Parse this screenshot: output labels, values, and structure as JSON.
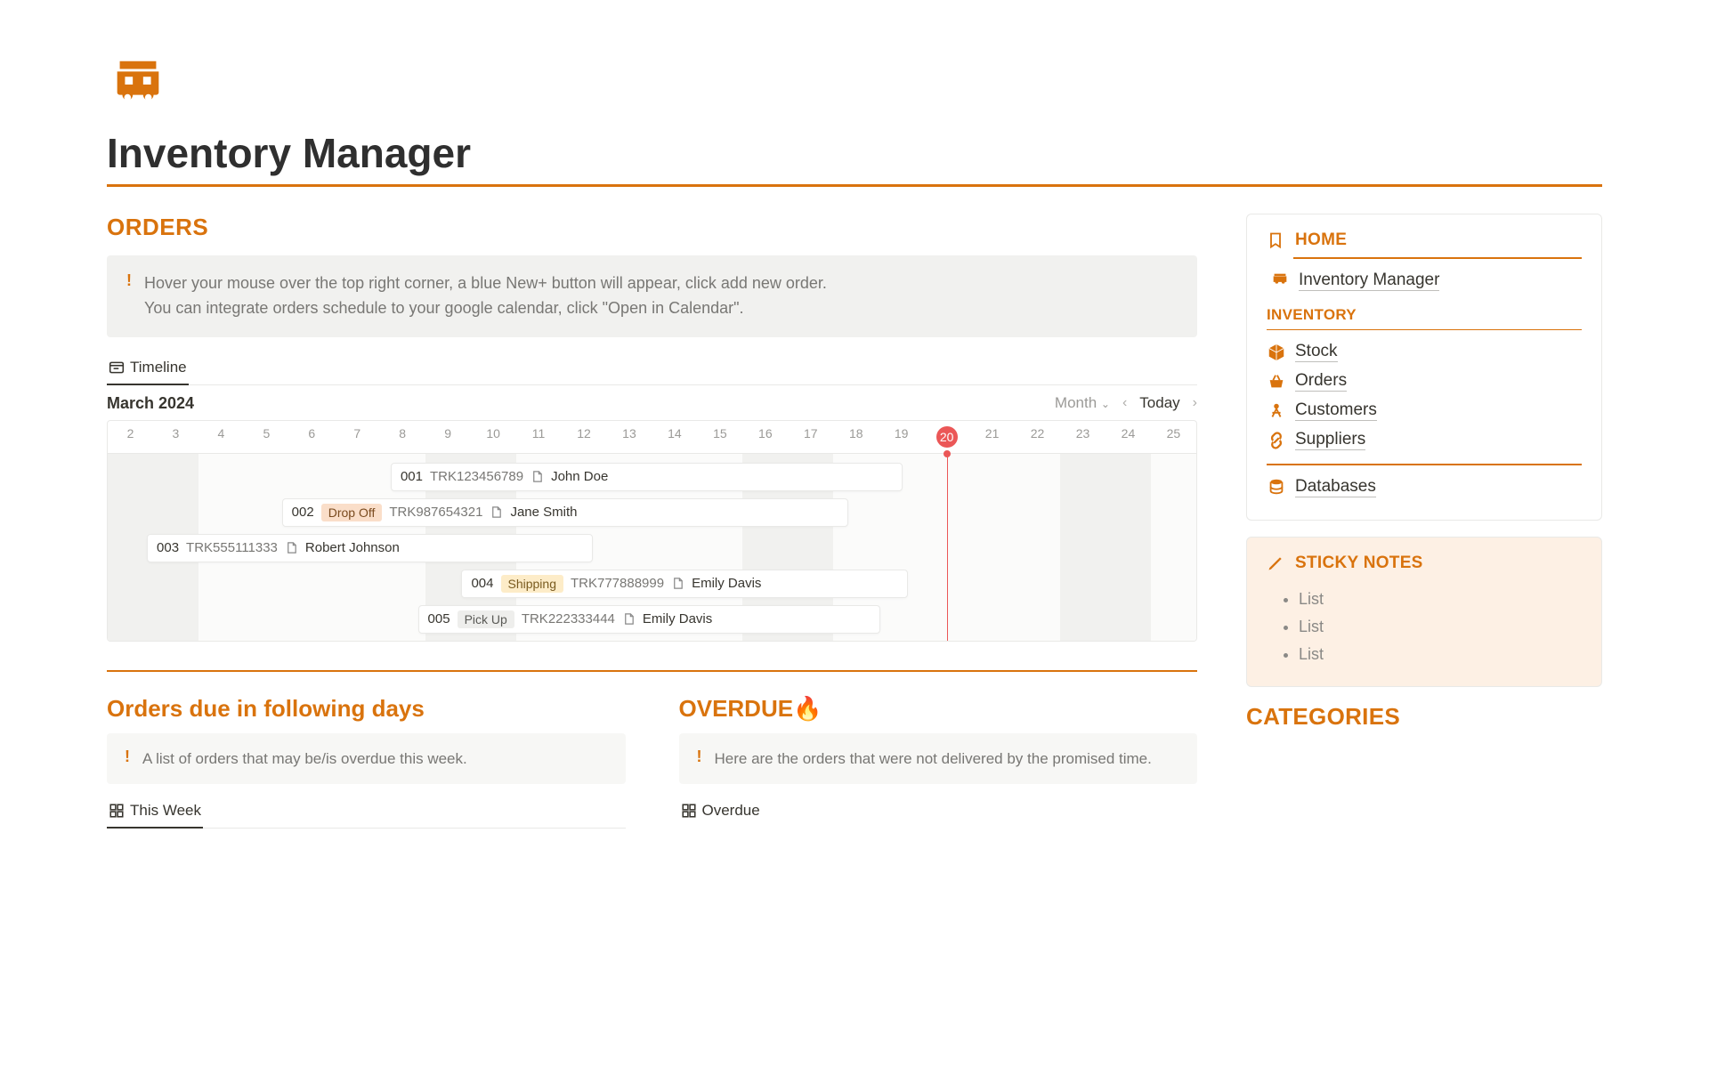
{
  "page": {
    "title": "Inventory Manager",
    "accent_color": "#d9730d"
  },
  "orders_section": {
    "heading": "ORDERS",
    "callout_line1": "Hover your mouse over the top right corner, a blue New+ button will appear, click add new order.",
    "callout_line2": "You can integrate orders schedule to your google calendar, click \"Open in Calendar\".",
    "view_tab": "Timeline"
  },
  "timeline": {
    "month_label": "March 2024",
    "view_scale": "Month",
    "today_label": "Today",
    "today_day": 20,
    "day_start": 2,
    "day_end": 25,
    "days": [
      "2",
      "3",
      "4",
      "5",
      "6",
      "7",
      "8",
      "9",
      "10",
      "11",
      "12",
      "13",
      "14",
      "15",
      "16",
      "17",
      "18",
      "19",
      "20",
      "21",
      "22",
      "23",
      "24",
      "25"
    ],
    "weekend_shade_ranges_pct": [
      [
        0,
        8.33
      ],
      [
        29.17,
        37.5
      ],
      [
        58.33,
        66.67
      ],
      [
        87.5,
        95.83
      ]
    ],
    "today_line_pct": 77.08,
    "orders": [
      {
        "id": "001",
        "tag": null,
        "tag_color": null,
        "tracking": "TRK123456789",
        "customer": "John Doe",
        "row": 0,
        "left_pct": 26.0,
        "width_pct": 47.0
      },
      {
        "id": "002",
        "tag": "Drop Off",
        "tag_color": "#fadec9",
        "tracking": "TRK987654321",
        "customer": "Jane Smith",
        "row": 1,
        "left_pct": 16.0,
        "width_pct": 52.0
      },
      {
        "id": "003",
        "tag": null,
        "tag_color": null,
        "tracking": "TRK555111333",
        "customer": "Robert Johnson",
        "row": 2,
        "left_pct": 3.6,
        "width_pct": 41.0
      },
      {
        "id": "004",
        "tag": "Shipping",
        "tag_color": "#fdecc8",
        "tracking": "TRK777888999",
        "customer": "Emily Davis",
        "row": 3,
        "left_pct": 32.5,
        "width_pct": 41.0
      },
      {
        "id": "005",
        "tag": "Pick Up",
        "tag_color": "#eeeeec",
        "tracking": "TRK222333444",
        "customer": "Emily Davis",
        "row": 4,
        "left_pct": 28.5,
        "width_pct": 42.5
      }
    ]
  },
  "due_section": {
    "heading": "Orders due in following days",
    "callout": "A list of orders that may be/is overdue this week.",
    "view_tab": "This Week"
  },
  "overdue_section": {
    "heading": "OVERDUE🔥",
    "callout": "Here are the orders that were not delivered by the promised time.",
    "view_tab": "Overdue"
  },
  "sidebar": {
    "home_heading": "HOME",
    "home_item": "Inventory Manager",
    "inventory_heading": "INVENTORY",
    "inventory_items": [
      {
        "icon": "box",
        "label": "Stock"
      },
      {
        "icon": "basket",
        "label": "Orders"
      },
      {
        "icon": "person",
        "label": "Customers"
      },
      {
        "icon": "link",
        "label": "Suppliers"
      }
    ],
    "databases_label": "Databases",
    "sticky_heading": "STICKY NOTES",
    "sticky_items": [
      "List",
      "List",
      "List"
    ],
    "categories_heading": "CATEGORIES"
  }
}
